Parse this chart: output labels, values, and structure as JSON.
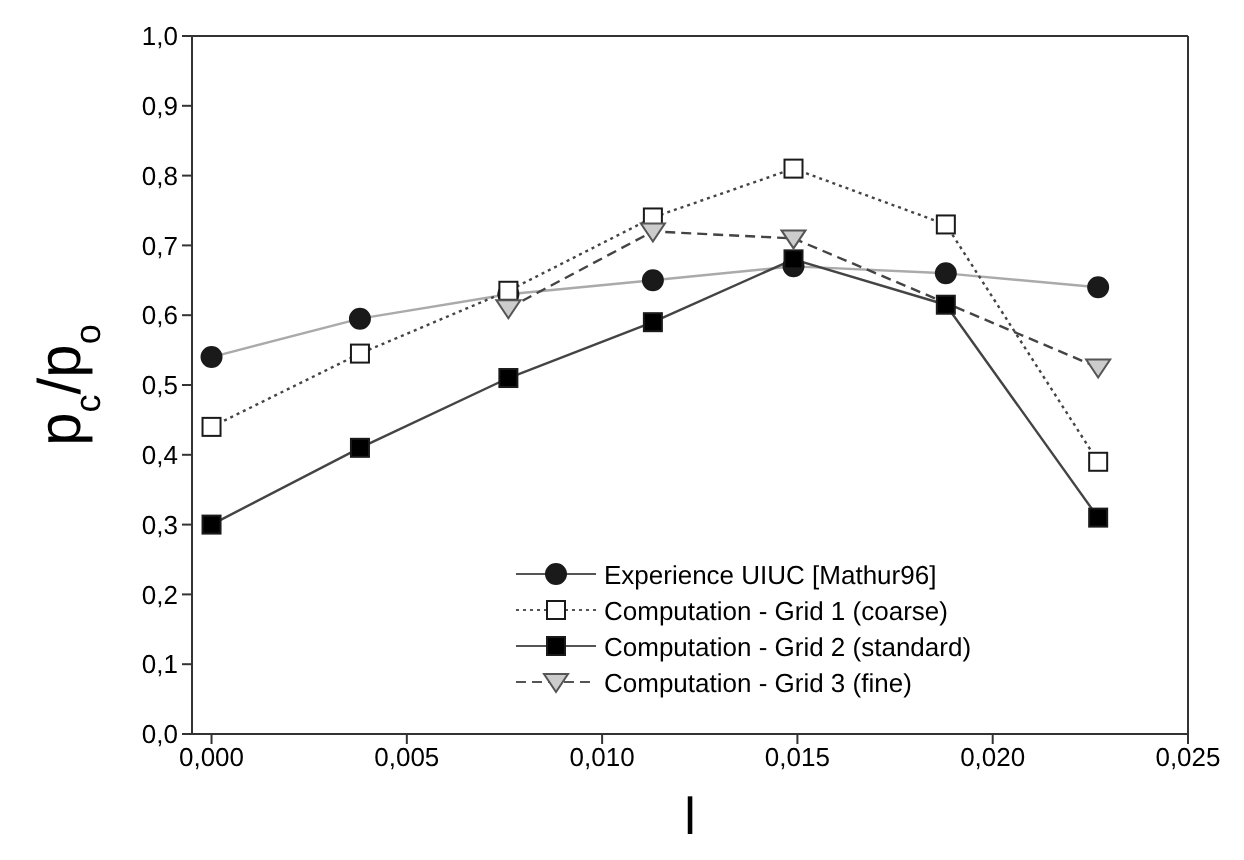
{
  "chart_data": {
    "type": "line",
    "xlabel": "l",
    "ylabel": "p$_{c}$/p$_{o}$",
    "xlim": [
      -0.0005,
      0.025
    ],
    "ylim": [
      0,
      1
    ],
    "xticks": [
      {
        "value": 0,
        "label": "0,000"
      },
      {
        "value": 0.005,
        "label": "0,005"
      },
      {
        "value": 0.01,
        "label": "0,010"
      },
      {
        "value": 0.015,
        "label": "0,015"
      },
      {
        "value": 0.02,
        "label": "0,020"
      },
      {
        "value": 0.025,
        "label": "0,025"
      }
    ],
    "yticks": [
      {
        "value": 0,
        "label": "0,0"
      },
      {
        "value": 0.1,
        "label": "0,1"
      },
      {
        "value": 0.2,
        "label": "0,2"
      },
      {
        "value": 0.3,
        "label": "0,3"
      },
      {
        "value": 0.4,
        "label": "0,4"
      },
      {
        "value": 0.5,
        "label": "0,5"
      },
      {
        "value": 0.6,
        "label": "0,6"
      },
      {
        "value": 0.7,
        "label": "0,7"
      },
      {
        "value": 0.8,
        "label": "0,8"
      },
      {
        "value": 0.9,
        "label": "0,9"
      },
      {
        "value": 1,
        "label": "1,0"
      }
    ],
    "legend": "bottom right",
    "series": [
      {
        "name": "Experience UIUC [Mathur96]",
        "color": "#1a1a1a",
        "marker": "circle",
        "line_style": "solid",
        "x": [
          0,
          0.0038,
          0.0076,
          0.0113,
          0.0149,
          0.0188,
          0.0227
        ],
        "values": [
          0.54,
          0.595,
          0.63,
          0.65,
          0.67,
          0.66,
          0.64
        ]
      },
      {
        "name": "Computation - Grid 1 (coarse)",
        "color": "#ffffff",
        "marker": "square",
        "line_style": "dotted",
        "x": [
          0,
          0.0038,
          0.0076,
          0.0113,
          0.0149,
          0.0188,
          0.0227
        ],
        "values": [
          0.44,
          0.545,
          0.635,
          0.74,
          0.81,
          0.73,
          0.39
        ]
      },
      {
        "name": "Computation - Grid 2 (standard)",
        "color": "#000000",
        "marker": "square",
        "line_style": "solid",
        "x": [
          0,
          0.0038,
          0.0076,
          0.0113,
          0.0149,
          0.0188,
          0.0227
        ],
        "values": [
          0.3,
          0.41,
          0.51,
          0.59,
          0.68,
          0.615,
          0.31
        ]
      },
      {
        "name": "Computation - Grid 3 (fine)",
        "color": "#cccccc",
        "marker": "triangle",
        "line_style": "dashed",
        "x": [
          0.0076,
          0.0113,
          0.0149,
          0.0227
        ],
        "values": [
          0.61,
          0.72,
          0.71,
          0.525
        ]
      }
    ]
  }
}
